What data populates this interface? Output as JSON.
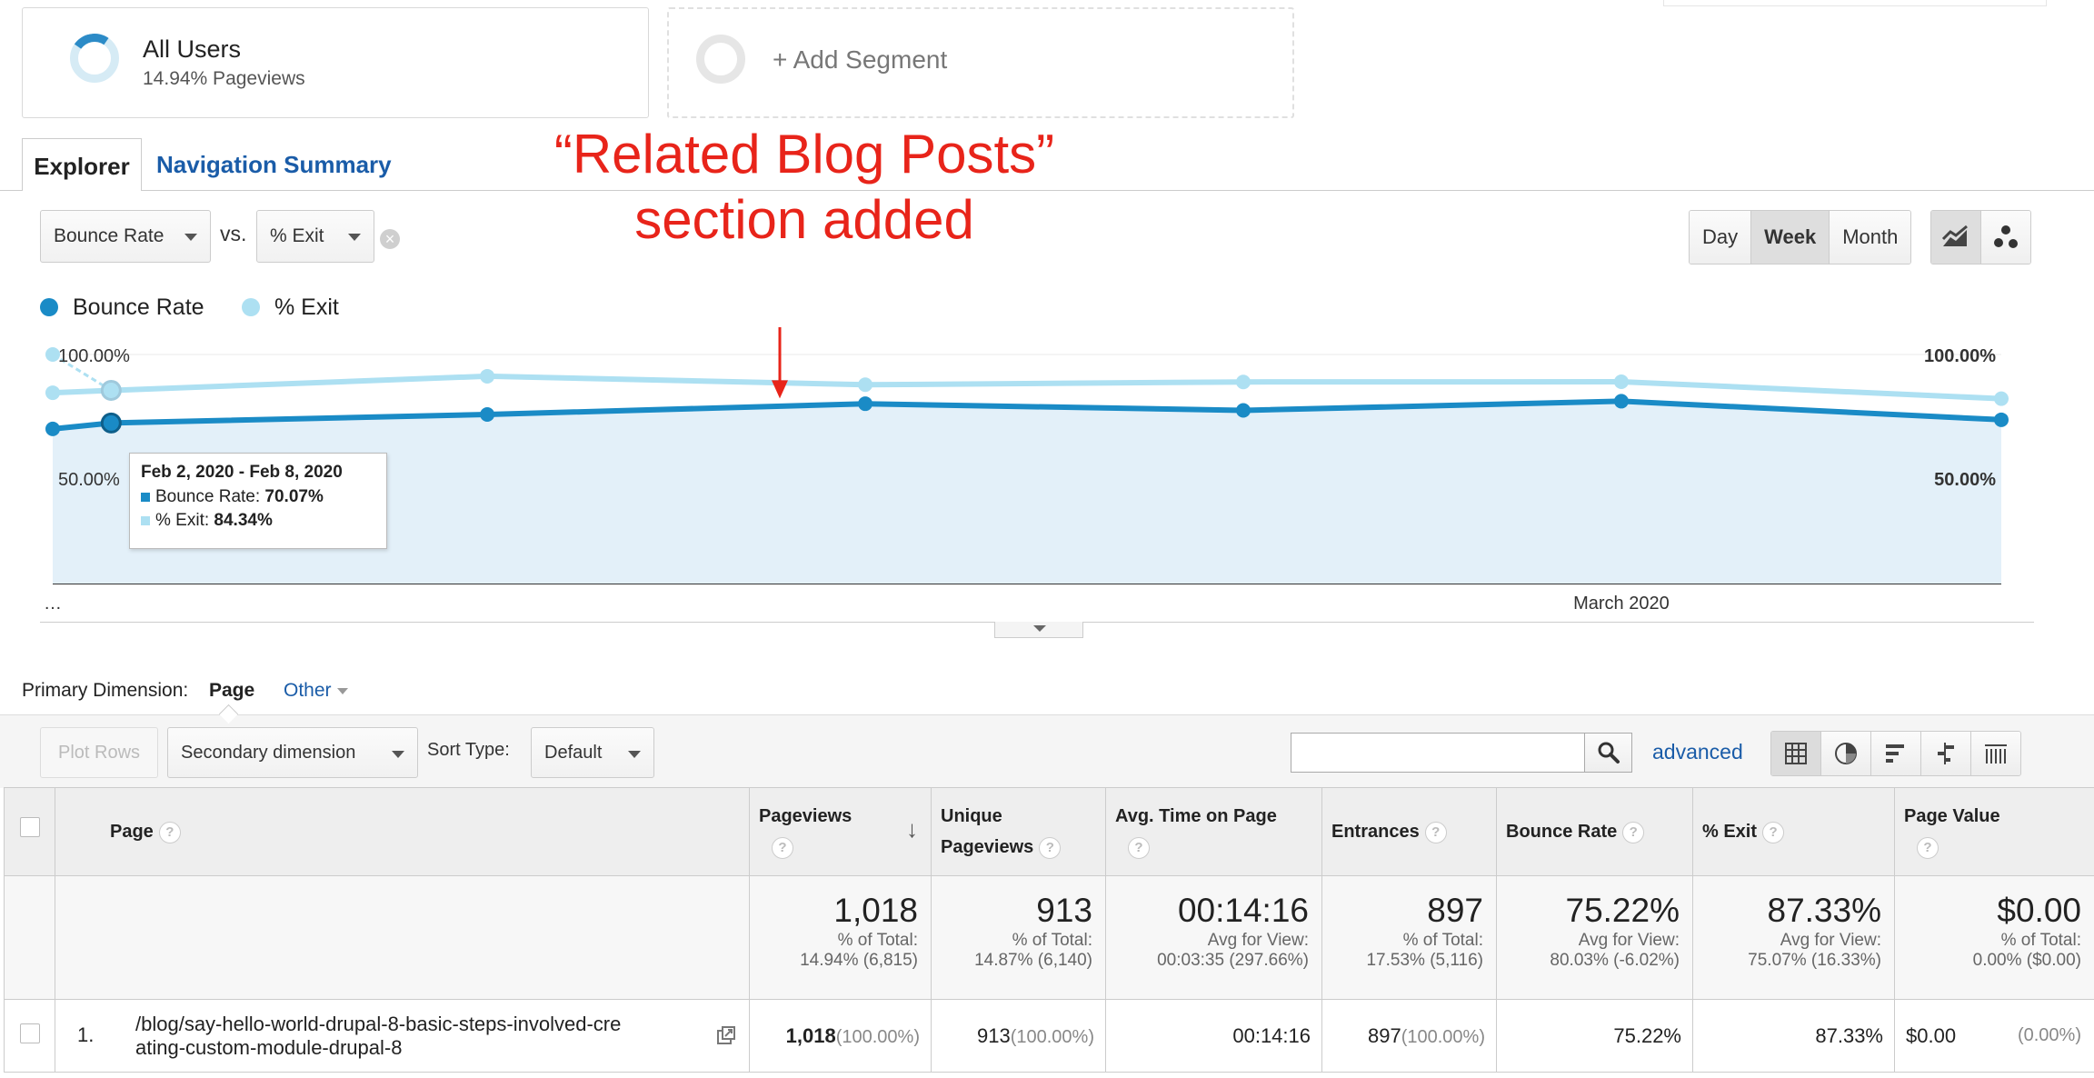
{
  "segments": {
    "primary": {
      "title": "All Users",
      "subtitle": "14.94% Pageviews"
    },
    "add_label": "+ Add Segment"
  },
  "tabs": {
    "explorer": "Explorer",
    "navigation_summary": "Navigation Summary"
  },
  "annotation": {
    "line1": "“Related Blog Posts”",
    "line2": "section added"
  },
  "controls": {
    "metric1": "Bounce Rate",
    "vs": "vs.",
    "metric2": "% Exit",
    "period": {
      "day": "Day",
      "week": "Week",
      "month": "Month",
      "selected": "Week"
    }
  },
  "legend": {
    "bounce": "Bounce Rate",
    "exit": "% Exit"
  },
  "colors": {
    "bounce": "#1a8bc6",
    "exit": "#ade0f2",
    "area": "#e3f0f9",
    "annotation": "#e8241a",
    "link": "#1a5ca8"
  },
  "chart_data": {
    "type": "line",
    "series": [
      {
        "name": "Bounce Rate",
        "values": [
          67.5,
          70.07,
          73.8,
          78.5,
          75.6,
          79.6,
          71.5
        ]
      },
      {
        "name": "% Exit",
        "values": [
          83.3,
          84.34,
          90.5,
          86.8,
          88.0,
          88.1,
          80.7
        ]
      }
    ],
    "x_points": [
      0.0,
      0.03,
      0.223,
      0.417,
      0.611,
      0.805,
      1.0
    ],
    "x_tick_labels": [
      "…",
      "March 2020"
    ],
    "y_ticks_left": [
      "100.00%",
      "50.00%"
    ],
    "y_ticks_right": [
      "100.00%",
      "50.00%"
    ],
    "ylim": [
      0,
      100
    ],
    "grid": true,
    "legend_position": "top-left",
    "highlight_index": 1,
    "start_marker": {
      "series": "% Exit",
      "value": 100
    }
  },
  "tooltip": {
    "date": "Feb 2, 2020 - Feb 8, 2020",
    "bounce_label": "Bounce Rate:",
    "bounce_value": "70.07%",
    "exit_label": "% Exit:",
    "exit_value": "84.34%"
  },
  "dimension": {
    "label": "Primary Dimension:",
    "page": "Page",
    "other": "Other"
  },
  "toolbar": {
    "plot_rows": "Plot Rows",
    "secondary": "Secondary dimension",
    "sort_label": "Sort Type:",
    "sort_value": "Default",
    "search_value": "",
    "advanced": "advanced"
  },
  "table": {
    "headers": {
      "page": "Page",
      "pageviews": "Pageviews",
      "unique_line1": "Unique",
      "unique_line2": "Pageviews",
      "avg_time": "Avg. Time on Page",
      "entrances": "Entrances",
      "bounce_rate": "Bounce Rate",
      "exit": "% Exit",
      "page_value": "Page Value",
      "help": "?"
    },
    "totals": {
      "pageviews": {
        "value": "1,018",
        "l1": "% of Total:",
        "l2": "14.94% (6,815)"
      },
      "unique": {
        "value": "913",
        "l1": "% of Total:",
        "l2": "14.87% (6,140)"
      },
      "avg_time": {
        "value": "00:14:16",
        "l1": "Avg for View:",
        "l2": "00:03:35 (297.66%)"
      },
      "entrances": {
        "value": "897",
        "l1": "% of Total:",
        "l2": "17.53% (5,116)"
      },
      "bounce_rate": {
        "value": "75.22%",
        "l1": "Avg for View:",
        "l2": "80.03% (-6.02%)"
      },
      "exit": {
        "value": "87.33%",
        "l1": "Avg for View:",
        "l2": "75.07% (16.33%)"
      },
      "page_value": {
        "value": "$0.00",
        "l1": "% of Total:",
        "l2": "0.00% ($0.00)"
      }
    },
    "rows": [
      {
        "index": "1.",
        "page_line1": "/blog/say-hello-world-drupal-8-basic-steps-involved-cre",
        "page_line2": "ating-custom-module-drupal-8",
        "pageviews": "1,018",
        "pageviews_pct": "(100.00%)",
        "unique": "913",
        "unique_pct": "(100.00%)",
        "avg_time": "00:14:16",
        "entrances": "897",
        "entrances_pct": "(100.00%)",
        "bounce_rate": "75.22%",
        "exit": "87.33%",
        "page_value": "$0.00",
        "page_value_pct": "(0.00%)"
      }
    ]
  }
}
